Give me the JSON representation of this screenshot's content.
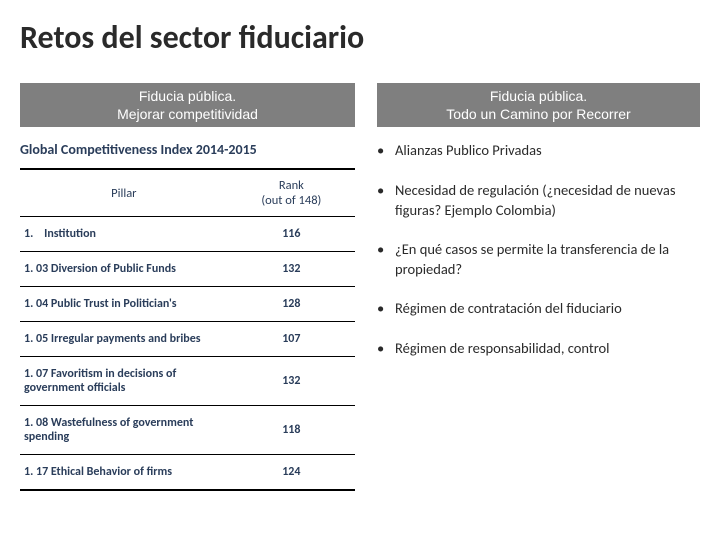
{
  "title": "Retos del sector fiduciario",
  "left": {
    "banner_line1": "Fiducia pública.",
    "banner_line2": "Mejorar competitividad",
    "subhead": "Global Competitiveness Index 2014-2015",
    "col_pillar": "Pillar",
    "col_rank_line1": "Rank",
    "col_rank_line2": "(out of 148)",
    "rows": [
      {
        "label": "1.    Institution",
        "rank": "116"
      },
      {
        "label": "1. 03 Diversion of Public Funds",
        "rank": "132"
      },
      {
        "label": "1. 04 Public Trust in Politician's",
        "rank": "128"
      },
      {
        "label": "1. 05 Irregular payments and bribes",
        "rank": "107"
      },
      {
        "label": "1. 07 Favoritism in decisions of government officials",
        "rank": "132"
      },
      {
        "label": "1. 08 Wastefulness of government spending",
        "rank": "118"
      },
      {
        "label": "1. 17 Ethical Behavior of firms",
        "rank": "124"
      }
    ]
  },
  "right": {
    "banner_line1": "Fiducia pública.",
    "banner_line2": "Todo un Camino por Recorrer",
    "bullets": [
      "Alianzas Publico Privadas",
      "Necesidad de regulación (¿necesidad de nuevas figuras? Ejemplo Colombia)",
      "¿En qué casos se permite la transferencia de la propiedad?",
      "Régimen de contratación del fiduciario",
      "Régimen de responsabilidad, control"
    ]
  },
  "colors": {
    "banner_bg": "#7f7f7f",
    "text_dark": "#2a3d5a",
    "title_color": "#2a2a2a"
  }
}
